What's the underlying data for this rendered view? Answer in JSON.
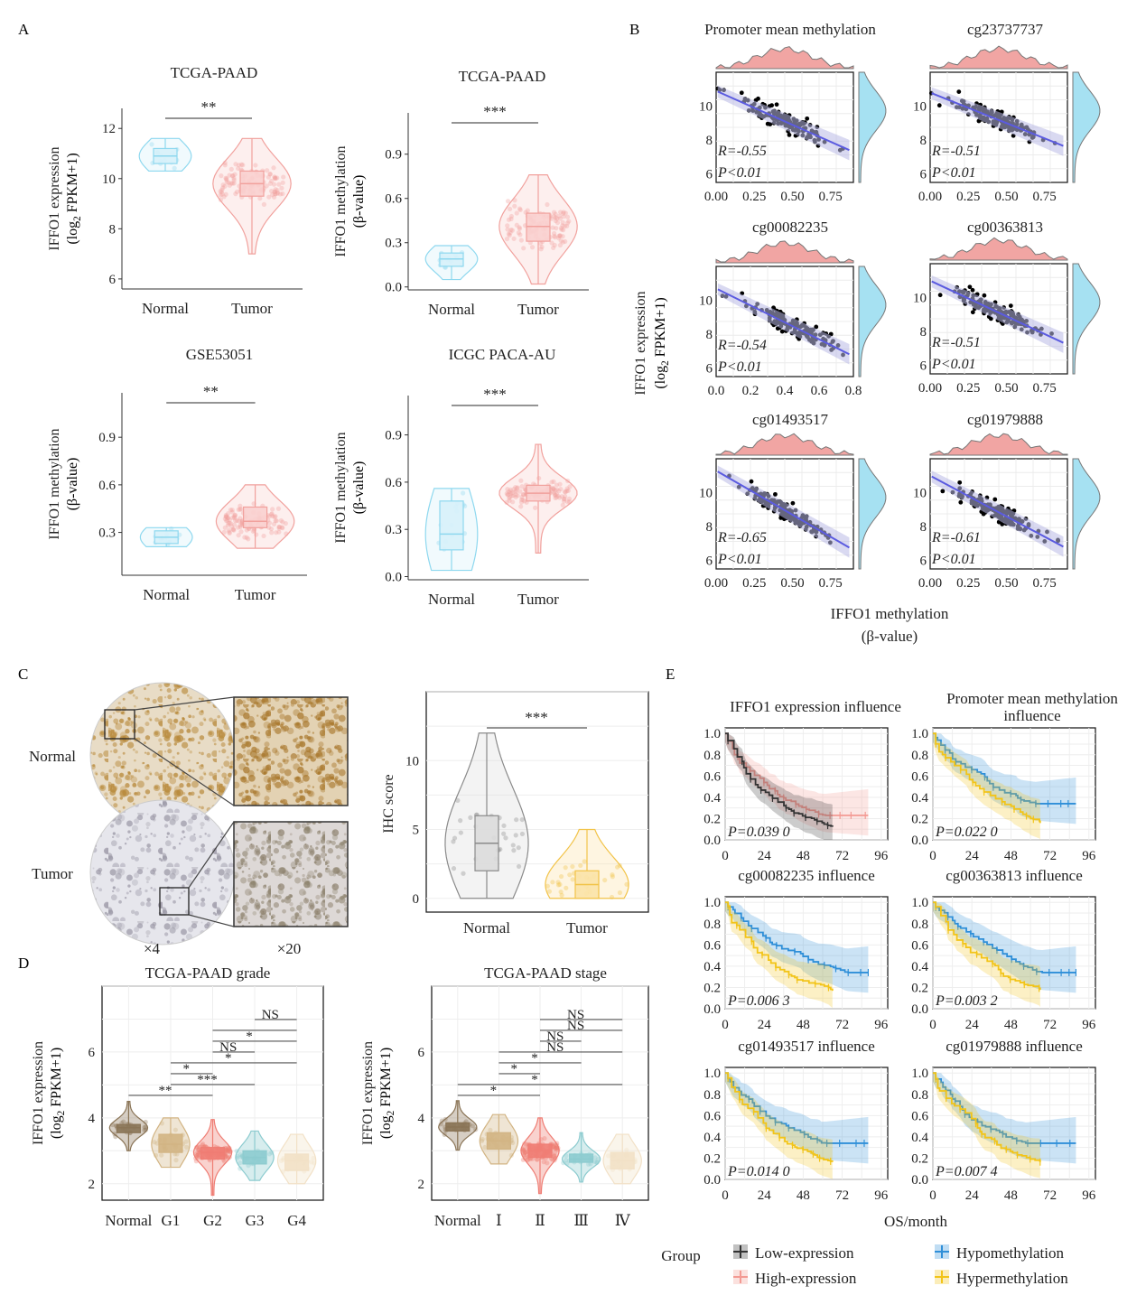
{
  "panel_letters": [
    "A",
    "B",
    "C",
    "D",
    "E"
  ],
  "colors": {
    "normal_fill": "#d7f1fa",
    "normal_stroke": "#8ed8ef",
    "tumor_fill": "#f9d0cf",
    "tumor_stroke": "#f1a19d",
    "grey_fill": "#dcdcdc",
    "grey_stroke": "#8a8a8a",
    "yellow_fill": "#fbe3a8",
    "yellow_stroke": "#f2c348",
    "scatter_line": "#5b5be0",
    "density_red": "#f1a5a3",
    "density_blue": "#a6e1f2",
    "km_black": "#333333",
    "km_red": "#f39a93",
    "km_blue": "#2f8fd8",
    "km_yellow": "#f2c418",
    "grade_colors": [
      "#8a7456",
      "#d2b483",
      "#ef7d74",
      "#8ccbcf",
      "#f2e1c7"
    ]
  },
  "panelA": {
    "plots": [
      {
        "title": "TCGA-PAAD",
        "ylabel": "IFFO1 expression",
        "ylabel2": "(log",
        "ylabel2_sub": "2",
        "ylabel2_tail": " FPKM+1)",
        "sig": "**",
        "yticks": [
          "6",
          "8",
          "10",
          "12"
        ],
        "ylim": [
          5.6,
          12.8
        ],
        "categories": [
          "Normal",
          "Tumor"
        ],
        "boxes": [
          {
            "q1": 10.6,
            "median": 10.9,
            "q3": 11.2,
            "min": 10.3,
            "max": 11.6
          },
          {
            "q1": 9.3,
            "median": 9.8,
            "q3": 10.3,
            "min": 7.0,
            "max": 11.6
          }
        ]
      },
      {
        "title": "TCGA-PAAD",
        "ylabel": "IFFO1 methylation",
        "ylabel2": "(β-value)",
        "ylabel2_sub": "",
        "ylabel2_tail": "",
        "sig": "***",
        "yticks": [
          "0.0",
          "0.3",
          "0.6",
          "0.9"
        ],
        "ylim": [
          -0.02,
          1.18
        ],
        "categories": [
          "Normal",
          "Tumor"
        ],
        "boxes": [
          {
            "q1": 0.14,
            "median": 0.19,
            "q3": 0.23,
            "min": 0.05,
            "max": 0.28
          },
          {
            "q1": 0.31,
            "median": 0.41,
            "q3": 0.5,
            "min": 0.02,
            "max": 0.76
          }
        ]
      },
      {
        "title": "GSE53051",
        "ylabel": "IFFO1 methylation",
        "ylabel2": "(β-value)",
        "ylabel2_sub": "",
        "ylabel2_tail": "",
        "sig": "**",
        "yticks": [
          "0.3",
          "0.6",
          "0.9"
        ],
        "ylim": [
          0.03,
          1.18
        ],
        "categories": [
          "Normal",
          "Tumor"
        ],
        "boxes": [
          {
            "q1": 0.23,
            "median": 0.27,
            "q3": 0.31,
            "min": 0.21,
            "max": 0.33
          },
          {
            "q1": 0.33,
            "median": 0.37,
            "q3": 0.46,
            "min": 0.2,
            "max": 0.6
          }
        ]
      },
      {
        "title": "ICGC PACA-AU",
        "ylabel": "IFFO1 methylation",
        "ylabel2": "(β-value)",
        "ylabel2_sub": "",
        "ylabel2_tail": "",
        "sig": "***",
        "yticks": [
          "0.0",
          "0.3",
          "0.6",
          "0.9"
        ],
        "ylim": [
          -0.02,
          1.15
        ],
        "categories": [
          "Normal",
          "Tumor"
        ],
        "boxes": [
          {
            "q1": 0.17,
            "median": 0.27,
            "q3": 0.48,
            "min": 0.04,
            "max": 0.56
          },
          {
            "q1": 0.48,
            "median": 0.53,
            "q3": 0.58,
            "min": 0.15,
            "max": 0.84
          }
        ]
      }
    ]
  },
  "panelB": {
    "ylabel": "IFFO1 expression",
    "ylabel2": "(log",
    "ylabel2_sub": "2",
    "ylabel2_tail": " FPKM+1)",
    "xlabel": "IFFO1 methylation",
    "xlabel2": "(β-value)",
    "plots": [
      {
        "title": "Promoter mean methylation",
        "xticks": [
          "0.00",
          "0.25",
          "0.50",
          "0.75"
        ],
        "xlim": [
          0,
          0.9
        ],
        "slope": -4.0,
        "intercept": 10.9,
        "R": "R=-0.55",
        "P": "P<0.01",
        "seed": 11
      },
      {
        "title": "cg23737737",
        "xticks": [
          "0.00",
          "0.25",
          "0.50",
          "0.75"
        ],
        "xlim": [
          0,
          0.9
        ],
        "slope": -3.6,
        "intercept": 10.8,
        "R": "R=-0.51",
        "P": "P<0.01",
        "seed": 23
      },
      {
        "title": "cg00082235",
        "xticks": [
          "0.0",
          "0.2",
          "0.4",
          "0.6",
          "0.8"
        ],
        "xlim": [
          0,
          0.8
        ],
        "slope": -5.0,
        "intercept": 10.7,
        "R": "R=-0.54",
        "P": "P<0.01",
        "seed": 37
      },
      {
        "title": "cg00363813",
        "xticks": [
          "0.00",
          "0.25",
          "0.50",
          "0.75"
        ],
        "xlim": [
          0,
          0.9
        ],
        "slope": -4.2,
        "intercept": 11.0,
        "R": "R=-0.51",
        "P": "P<0.01",
        "seed": 41
      },
      {
        "title": "cg01493517",
        "xticks": [
          "0.00",
          "0.25",
          "0.50",
          "0.75"
        ],
        "xlim": [
          0,
          0.9
        ],
        "slope": -5.2,
        "intercept": 11.3,
        "R": "R=-0.65",
        "P": "P<0.01",
        "seed": 53
      },
      {
        "title": "cg01979888",
        "xticks": [
          "0.00",
          "0.25",
          "0.50",
          "0.75"
        ],
        "xlim": [
          0,
          0.9
        ],
        "slope": -4.8,
        "intercept": 11.0,
        "R": "R=-0.61",
        "P": "P<0.01",
        "seed": 67
      }
    ],
    "yticks": [
      "6",
      "8",
      "10"
    ],
    "ylim": [
      5.5,
      12.0
    ]
  },
  "panelC": {
    "left_labels": [
      "Normal",
      "Tumor"
    ],
    "mag_labels": [
      "×4",
      "×20"
    ],
    "ylabel": "IHC score",
    "sig": "***",
    "yticks": [
      "0",
      "5",
      "10"
    ],
    "ylim": [
      -1,
      15
    ],
    "categories": [
      "Normal",
      "Tumor"
    ],
    "boxes": [
      {
        "q1": 2,
        "median": 4,
        "q3": 6,
        "min": 0,
        "max": 12
      },
      {
        "q1": 0,
        "median": 1,
        "q3": 2,
        "min": 0,
        "max": 5
      }
    ]
  },
  "panelD": {
    "ylabel": "IFFO1 expression",
    "ylabel2": "(log",
    "ylabel2_sub": "2",
    "ylabel2_tail": " FPKM+1)",
    "plots": [
      {
        "title": "TCGA-PAAD grade",
        "categories": [
          "Normal",
          "G1",
          "G2",
          "G3",
          "G4"
        ],
        "boxes": [
          {
            "q1": 3.55,
            "median": 3.7,
            "q3": 3.8
          },
          {
            "q1": 2.95,
            "median": 3.2,
            "q3": 3.5
          },
          {
            "q1": 2.75,
            "median": 2.95,
            "q3": 3.1
          },
          {
            "q1": 2.6,
            "median": 2.8,
            "q3": 3.0
          },
          {
            "q1": 2.4,
            "median": 2.7,
            "q3": 2.9
          }
        ],
        "brackets": [
          {
            "a": 0,
            "b": 2,
            "label": "**"
          },
          {
            "a": 1,
            "b": 3,
            "label": "***"
          },
          {
            "a": 1,
            "b": 2,
            "label": "*"
          },
          {
            "a": 1,
            "b": 4,
            "label": "*"
          },
          {
            "a": 2,
            "b": 3,
            "label": "NS"
          },
          {
            "a": 2,
            "b": 4,
            "label": "*"
          },
          {
            "a": 2,
            "b": 4,
            "label": ""
          },
          {
            "a": 3,
            "b": 4,
            "label": "NS"
          }
        ],
        "bracket_top": [
          "NS",
          "NS"
        ]
      },
      {
        "title": "TCGA-PAAD stage",
        "categories": [
          "Normal",
          "Ⅰ",
          "Ⅱ",
          "Ⅲ",
          "Ⅳ"
        ],
        "boxes": [
          {
            "q1": 3.6,
            "median": 3.72,
            "q3": 3.85
          },
          {
            "q1": 3.05,
            "median": 3.3,
            "q3": 3.55
          },
          {
            "q1": 2.8,
            "median": 3.0,
            "q3": 3.2
          },
          {
            "q1": 2.65,
            "median": 2.75,
            "q3": 2.9
          },
          {
            "q1": 2.45,
            "median": 2.7,
            "q3": 2.95
          }
        ],
        "brackets": [
          {
            "a": 0,
            "b": 2,
            "label": "*"
          },
          {
            "a": 0,
            "b": 4,
            "label": "*"
          },
          {
            "a": 1,
            "b": 2,
            "label": "*"
          },
          {
            "a": 1,
            "b": 3,
            "label": "*"
          },
          {
            "a": 1,
            "b": 4,
            "label": "NS"
          },
          {
            "a": 2,
            "b": 3,
            "label": "NS"
          },
          {
            "a": 2,
            "b": 4,
            "label": "NS"
          },
          {
            "a": 2,
            "b": 4,
            "label": "NS"
          }
        ]
      }
    ],
    "yticks": [
      "2",
      "4",
      "6"
    ],
    "ylim": [
      1.5,
      8.0
    ]
  },
  "panelE": {
    "xlabel": "OS/month",
    "xticks": [
      "0",
      "24",
      "48",
      "72",
      "96"
    ],
    "yticks": [
      "0.0",
      "0.2",
      "0.4",
      "0.6",
      "0.8",
      "1.0"
    ],
    "plots": [
      {
        "title": "IFFO1 expression influence",
        "P": "P=0.039 0",
        "pair": "expr"
      },
      {
        "title": "Promoter mean methylation",
        "title2": "influence",
        "P": "P=0.022 0",
        "pair": "meth"
      },
      {
        "title": "cg00082235 influence",
        "P": "P=0.006 3",
        "pair": "meth"
      },
      {
        "title": "cg00363813 influence",
        "P": "P=0.003 2",
        "pair": "meth"
      },
      {
        "title": "cg01493517 influence",
        "P": "P=0.014 0",
        "pair": "meth"
      },
      {
        "title": "cg01979888 influence",
        "P": "P=0.007 4",
        "pair": "meth"
      }
    ],
    "legend_title": "Group",
    "legend_items": [
      "Low-expression",
      "High-expression",
      "Hypomethylation",
      "Hypermethylation"
    ]
  },
  "chart_data": [
    {
      "type": "violin",
      "title": "TCGA-PAAD",
      "categories": [
        "Normal",
        "Tumor"
      ],
      "ylabel": "IFFO1 expression (log2 FPKM+1)",
      "medians": [
        10.9,
        9.8
      ],
      "significance": "**"
    },
    {
      "type": "violin",
      "title": "TCGA-PAAD",
      "categories": [
        "Normal",
        "Tumor"
      ],
      "ylabel": "IFFO1 methylation (β-value)",
      "medians": [
        0.19,
        0.41
      ],
      "significance": "***"
    },
    {
      "type": "violin",
      "title": "GSE53051",
      "categories": [
        "Normal",
        "Tumor"
      ],
      "ylabel": "IFFO1 methylation (β-value)",
      "medians": [
        0.27,
        0.37
      ],
      "significance": "**"
    },
    {
      "type": "violin",
      "title": "ICGC PACA-AU",
      "categories": [
        "Normal",
        "Tumor"
      ],
      "ylabel": "IFFO1 methylation (β-value)",
      "medians": [
        0.27,
        0.53
      ],
      "significance": "***"
    },
    {
      "type": "scatter",
      "panel": "B",
      "xlabel": "IFFO1 methylation (β-value)",
      "ylabel": "IFFO1 expression (log2 FPKM+1)",
      "series": [
        {
          "name": "Promoter mean methylation",
          "R": -0.55,
          "P": "<0.01"
        },
        {
          "name": "cg23737737",
          "R": -0.51,
          "P": "<0.01"
        },
        {
          "name": "cg00082235",
          "R": -0.54,
          "P": "<0.01"
        },
        {
          "name": "cg00363813",
          "R": -0.51,
          "P": "<0.01"
        },
        {
          "name": "cg01493517",
          "R": -0.65,
          "P": "<0.01"
        },
        {
          "name": "cg01979888",
          "R": -0.61,
          "P": "<0.01"
        }
      ]
    },
    {
      "type": "violin",
      "panel": "C",
      "ylabel": "IHC score",
      "categories": [
        "Normal",
        "Tumor"
      ],
      "medians": [
        4,
        1
      ],
      "significance": "***"
    },
    {
      "type": "violin",
      "panel": "D",
      "title": "TCGA-PAAD grade",
      "categories": [
        "Normal",
        "G1",
        "G2",
        "G3",
        "G4"
      ],
      "medians": [
        3.7,
        3.2,
        2.95,
        2.8,
        2.7
      ]
    },
    {
      "type": "violin",
      "panel": "D",
      "title": "TCGA-PAAD stage",
      "categories": [
        "Normal",
        "Ⅰ",
        "Ⅱ",
        "Ⅲ",
        "Ⅳ"
      ],
      "medians": [
        3.72,
        3.3,
        3.0,
        2.75,
        2.7
      ]
    },
    {
      "type": "line",
      "panel": "E",
      "xlabel": "OS/month",
      "x_range": [
        0,
        96
      ],
      "y_range": [
        0,
        1
      ],
      "series": [
        {
          "name": "IFFO1 expression influence",
          "P": "0.039 0"
        },
        {
          "name": "Promoter mean methylation influence",
          "P": "0.022 0"
        },
        {
          "name": "cg00082235 influence",
          "P": "0.006 3"
        },
        {
          "name": "cg00363813 influence",
          "P": "0.003 2"
        },
        {
          "name": "cg01493517 influence",
          "P": "0.014 0"
        },
        {
          "name": "cg01979888 influence",
          "P": "0.007 4"
        }
      ]
    }
  ]
}
